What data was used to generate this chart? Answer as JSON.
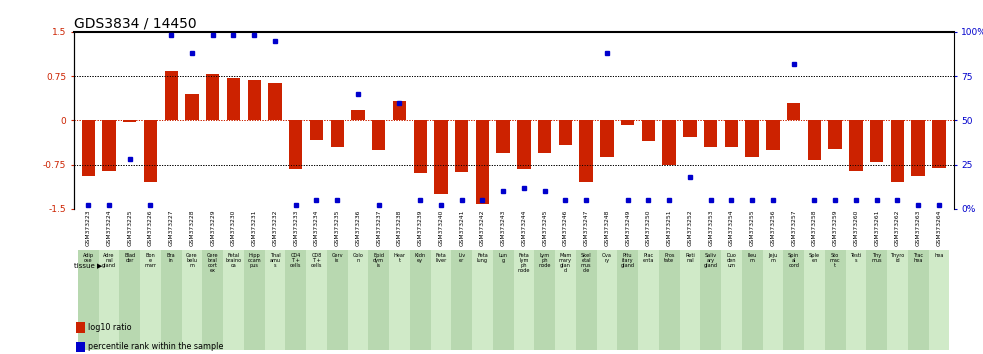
{
  "title": "GDS3834 / 14450",
  "gsm_ids": [
    "GSM373223",
    "GSM373224",
    "GSM373225",
    "GSM373226",
    "GSM373227",
    "GSM373228",
    "GSM373229",
    "GSM373230",
    "GSM373231",
    "GSM373232",
    "GSM373233",
    "GSM373234",
    "GSM373235",
    "GSM373236",
    "GSM373237",
    "GSM373238",
    "GSM373239",
    "GSM373240",
    "GSM373241",
    "GSM373242",
    "GSM373243",
    "GSM373244",
    "GSM373245",
    "GSM373246",
    "GSM373247",
    "GSM373248",
    "GSM373249",
    "GSM373250",
    "GSM373251",
    "GSM373252",
    "GSM373253",
    "GSM373254",
    "GSM373255",
    "GSM373256",
    "GSM373257",
    "GSM373258",
    "GSM373259",
    "GSM373260",
    "GSM373261",
    "GSM373262",
    "GSM373263",
    "GSM373264"
  ],
  "tissue_labels": [
    "Adip\nose",
    "Adre\nnal\ngland",
    "Blad\nder",
    "Bon\ne\nmarr",
    "Bra\nin",
    "Cere\nbelu\nm",
    "Cere\nbral\ncort\nex",
    "Fetal\nbraino\nca",
    "Hipp\nocam\npus",
    "Thal\namu\ns",
    "CD4\nT +\ncells",
    "CD8\nT +\ncells",
    "Cerv\nix",
    "Colo\nn",
    "Epid\ndym\nis",
    "Hear\nt",
    "Kidn\ney",
    "Feta\nliver",
    "Liv\ner",
    "Feta\nlung",
    "Lun\ng",
    "Feta\nlym\nph\nnode",
    "Lym\nph\nnode",
    "Mam\nmary\nglan\nd",
    "Skel\netal\nmus\ncle",
    "Ova\nry",
    "Pitu\nitary\ngland",
    "Plac\nenta",
    "Pros\ntate",
    "Reti\nnal",
    "Saliv\nary\ngland",
    "Duo\nden\num",
    "Ileu\nm",
    "Jeju\nm",
    "Spin\nal\ncord",
    "Sple\nen",
    "Sto\nmac\nt",
    "Testi\ns",
    "Thy\nmus",
    "Thyro\nid",
    "Trac\nhea",
    "hea"
  ],
  "log10_ratio": [
    -0.95,
    -0.85,
    -0.02,
    -1.05,
    0.83,
    0.45,
    0.78,
    0.72,
    0.68,
    0.64,
    -0.82,
    -0.33,
    -0.45,
    0.18,
    -0.5,
    0.32,
    -0.9,
    -1.25,
    -0.88,
    -1.42,
    -0.55,
    -0.82,
    -0.56,
    -0.42,
    -1.05,
    -0.62,
    -0.08,
    -0.35,
    -0.75,
    -0.28,
    -0.45,
    -0.45,
    -0.62,
    -0.5,
    0.3,
    -0.68,
    -0.48,
    -0.85,
    -0.7,
    -1.05,
    -0.95,
    -0.8
  ],
  "percentile_rank": [
    2,
    2,
    28,
    2,
    98,
    88,
    98,
    98,
    98,
    95,
    2,
    5,
    5,
    65,
    2,
    60,
    5,
    2,
    5,
    5,
    10,
    12,
    10,
    5,
    5,
    88,
    5,
    5,
    5,
    18,
    5,
    5,
    5,
    5,
    82,
    5,
    5,
    5,
    5,
    5,
    2,
    2
  ],
  "bar_color": "#cc2200",
  "dot_color": "#0000cc",
  "ylim_left": [
    -1.5,
    1.5
  ],
  "ylim_right": [
    0,
    100
  ],
  "yticks_left": [
    -1.5,
    -0.75,
    0,
    0.75,
    1.5
  ],
  "ytick_labels_left": [
    "-1.5",
    "-0.75",
    "0",
    "0.75",
    "1.5"
  ],
  "yticks_right": [
    0,
    25,
    50,
    75,
    100
  ],
  "ytick_labels_right": [
    "0%",
    "25",
    "50",
    "75",
    "100%"
  ],
  "hlines_black": [
    -0.75,
    0.75
  ],
  "hline_red": 0.0,
  "title_fontsize": 10,
  "legend_items": [
    {
      "color": "#cc2200",
      "label": "log10 ratio"
    },
    {
      "color": "#0000cc",
      "label": "percentile rank within the sample"
    }
  ]
}
